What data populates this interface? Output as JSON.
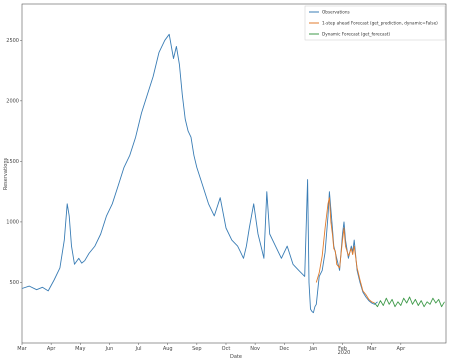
{
  "chart_data": {
    "type": "line",
    "xlabel": "Date",
    "ylabel": "Reservations",
    "ylim": [
      0,
      2800
    ],
    "x_month_range": [
      0,
      14.55
    ],
    "x_ticks": [
      {
        "m": 0,
        "label": "Mar"
      },
      {
        "m": 1,
        "label": "Apr"
      },
      {
        "m": 2,
        "label": "May"
      },
      {
        "m": 3,
        "label": "Jun"
      },
      {
        "m": 4,
        "label": "Jul"
      },
      {
        "m": 5,
        "label": "Aug"
      },
      {
        "m": 6,
        "label": "Sep"
      },
      {
        "m": 7,
        "label": "Oct"
      },
      {
        "m": 8,
        "label": "Nov"
      },
      {
        "m": 9,
        "label": "Dec"
      },
      {
        "m": 10,
        "label": "Jan"
      },
      {
        "m": 11,
        "label": "Feb"
      },
      {
        "m": 12,
        "label": "Mar"
      },
      {
        "m": 13,
        "label": "Apr"
      }
    ],
    "x_sublabel": {
      "m": 10,
      "label": "2020"
    },
    "y_ticks": [
      500,
      1000,
      1500,
      2000,
      2500
    ],
    "legend_position": "top-right",
    "series": [
      {
        "name": "Observations",
        "color": "#3a7db5",
        "x": [
          0,
          0.25,
          0.5,
          0.7,
          0.9,
          1.1,
          1.3,
          1.45,
          1.55,
          1.62,
          1.7,
          1.8,
          1.95,
          2.05,
          2.15,
          2.3,
          2.5,
          2.7,
          2.9,
          3.1,
          3.3,
          3.5,
          3.7,
          3.9,
          4.1,
          4.3,
          4.5,
          4.7,
          4.9,
          5.05,
          5.2,
          5.3,
          5.4,
          5.5,
          5.6,
          5.7,
          5.8,
          5.9,
          6.0,
          6.2,
          6.4,
          6.6,
          6.8,
          7.0,
          7.2,
          7.4,
          7.5,
          7.6,
          7.7,
          7.8,
          7.95,
          8.1,
          8.2,
          8.3,
          8.4,
          8.5,
          8.7,
          8.9,
          9.1,
          9.3,
          9.5,
          9.7,
          9.8,
          9.85,
          9.9,
          9.95,
          10.0,
          10.05,
          10.1,
          10.2,
          10.3,
          10.4,
          10.5,
          10.55,
          10.6,
          10.65,
          10.7,
          10.75,
          10.8,
          10.9,
          11.0,
          11.05,
          11.1,
          11.2,
          11.3,
          11.35,
          11.4,
          11.5,
          11.6,
          11.7,
          11.8,
          11.9,
          12.0,
          12.1,
          12.2
        ],
        "y": [
          450,
          470,
          440,
          460,
          430,
          520,
          620,
          850,
          1150,
          1050,
          800,
          650,
          700,
          660,
          680,
          740,
          800,
          900,
          1050,
          1150,
          1300,
          1450,
          1550,
          1700,
          1900,
          2050,
          2200,
          2400,
          2500,
          2550,
          2350,
          2450,
          2300,
          2050,
          1850,
          1750,
          1700,
          1550,
          1450,
          1300,
          1150,
          1050,
          1200,
          950,
          850,
          800,
          750,
          700,
          800,
          950,
          1150,
          900,
          800,
          700,
          1250,
          900,
          800,
          700,
          800,
          650,
          600,
          550,
          1350,
          500,
          280,
          260,
          250,
          300,
          320,
          550,
          600,
          750,
          1050,
          1250,
          1100,
          950,
          800,
          750,
          700,
          600,
          900,
          1000,
          850,
          700,
          800,
          750,
          850,
          600,
          500,
          420,
          380,
          350,
          330,
          320,
          340
        ]
      },
      {
        "name": "1-step ahead Forecast (get_prediction, dynamic=False)",
        "color": "#e07b2c",
        "x": [
          10.1,
          10.2,
          10.3,
          10.4,
          10.5,
          10.55,
          10.6,
          10.65,
          10.7,
          10.75,
          10.8,
          10.9,
          11.0,
          11.05,
          11.1,
          11.2,
          11.3,
          11.35,
          11.4,
          11.5,
          11.6,
          11.7,
          11.8,
          11.9,
          12.0,
          12.1
        ],
        "y": [
          500,
          580,
          720,
          950,
          1150,
          1200,
          1000,
          900,
          780,
          760,
          650,
          620,
          850,
          950,
          800,
          720,
          780,
          730,
          800,
          620,
          520,
          430,
          400,
          360,
          340,
          330
        ]
      },
      {
        "name": "Dynamic Forecast (get_forecast)",
        "color": "#3f9a4a",
        "x": [
          12.1,
          12.2,
          12.3,
          12.4,
          12.5,
          12.6,
          12.7,
          12.8,
          12.9,
          13.0,
          13.1,
          13.2,
          13.3,
          13.4,
          13.5,
          13.6,
          13.7,
          13.8,
          13.9,
          14.0,
          14.1,
          14.2,
          14.3,
          14.4,
          14.5
        ],
        "y": [
          330,
          300,
          350,
          310,
          370,
          320,
          360,
          300,
          340,
          310,
          370,
          330,
          380,
          320,
          360,
          310,
          350,
          300,
          340,
          320,
          370,
          330,
          360,
          300,
          340
        ]
      }
    ]
  }
}
